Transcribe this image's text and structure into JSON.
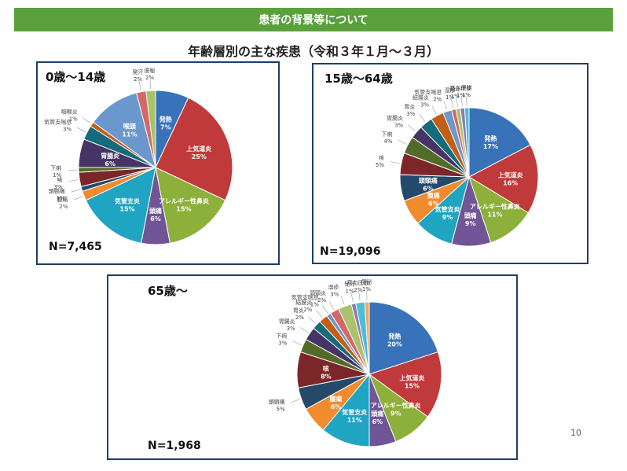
{
  "header": {
    "title": "患者の背景等について"
  },
  "page_title": "年齢層別の主な疾患（令和３年１月～３月）",
  "page_number": "10",
  "colors": {
    "header_bg": "#5aa13b",
    "panel_border": "#1f3f66"
  },
  "chart_data": [
    {
      "type": "pie",
      "title": "0歳～14歳",
      "n_label": "N=7,465",
      "slices": [
        {
          "name": "発熱",
          "label": "発熱",
          "pct_label": "7%",
          "value": 7,
          "color": "#3872b8"
        },
        {
          "name": "上気道炎",
          "label": "上気道炎",
          "pct_label": "25%",
          "value": 25,
          "color": "#c0393b"
        },
        {
          "name": "アレルギー性鼻炎",
          "label": "アレルギー性鼻炎",
          "pct_label": "15%",
          "value": 15,
          "color": "#8db03a"
        },
        {
          "name": "頭痛",
          "label": "頭痛",
          "pct_label": "6%",
          "value": 6,
          "color": "#705597"
        },
        {
          "name": "気管支炎",
          "label": "気管支炎",
          "pct_label": "15%",
          "value": 15,
          "color": "#1fa4c1"
        },
        {
          "name": "腹痛",
          "label": "腹痛",
          "pct_label": "2%",
          "value": 2,
          "color": "#f28a2e"
        },
        {
          "name": "頭頸痛",
          "label": "頭頸痛",
          "pct_label": "1%",
          "value": 1,
          "color": "#24496b"
        },
        {
          "name": "咳",
          "label": "咳",
          "pct_label": "3%",
          "value": 3,
          "color": "#7b2629"
        },
        {
          "name": "下痢",
          "label": "下痢",
          "pct_label": "1%",
          "value": 1,
          "color": "#536b2a"
        },
        {
          "name": "胃腸炎",
          "label": "胃腸炎",
          "pct_label": "6%",
          "value": 6,
          "color": "#463466"
        },
        {
          "name": "気管支喘息",
          "label": "気管支喘息",
          "pct_label": "3%",
          "value": 3,
          "color": "#146b7c"
        },
        {
          "name": "咽喉炎",
          "label": "咽喉炎",
          "pct_label": "1%",
          "value": 1,
          "color": "#c35e15"
        },
        {
          "name": "喉頭",
          "label": "喉頭",
          "pct_label": "11%",
          "value": 11,
          "color": "#6b98cc"
        },
        {
          "name": "発汗",
          "label": "発汗",
          "pct_label": "2%",
          "value": 2,
          "color": "#d46869"
        },
        {
          "name": "便秘",
          "label": "便秘",
          "pct_label": "2%",
          "value": 2,
          "color": "#a8c36a"
        }
      ]
    },
    {
      "type": "pie",
      "title": "15歳～64歳",
      "n_label": "N=19,096",
      "slices": [
        {
          "name": "発熱",
          "label": "発熱",
          "pct_label": "17%",
          "value": 17,
          "color": "#3872b8"
        },
        {
          "name": "上気道炎",
          "label": "上気道炎",
          "pct_label": "16%",
          "value": 16,
          "color": "#c0393b"
        },
        {
          "name": "アレルギー性鼻炎",
          "label": "アレルギー性鼻炎",
          "pct_label": "11%",
          "value": 11,
          "color": "#8db03a"
        },
        {
          "name": "頭痛",
          "label": "頭痛",
          "pct_label": "9%",
          "value": 9,
          "color": "#705597"
        },
        {
          "name": "気管支炎",
          "label": "気管支炎",
          "pct_label": "9%",
          "value": 9,
          "color": "#1fa4c1"
        },
        {
          "name": "腹痛",
          "label": "腹痛",
          "pct_label": "6%",
          "value": 6,
          "color": "#f28a2e"
        },
        {
          "name": "頭頸痛",
          "label": "頭頸痛",
          "pct_label": "6%",
          "value": 6,
          "color": "#24496b"
        },
        {
          "name": "咳",
          "label": "咳",
          "pct_label": "5%",
          "value": 5,
          "color": "#7b2629"
        },
        {
          "name": "下痢",
          "label": "下痢",
          "pct_label": "4%",
          "value": 4,
          "color": "#536b2a"
        },
        {
          "name": "胃腸炎",
          "label": "胃腸炎",
          "pct_label": "3%",
          "value": 3,
          "color": "#463466"
        },
        {
          "name": "胃炎",
          "label": "胃炎",
          "pct_label": "3%",
          "value": 3,
          "color": "#146b7c"
        },
        {
          "name": "結膜炎",
          "label": "結膜炎",
          "pct_label": "3%",
          "value": 3,
          "color": "#c35e15"
        },
        {
          "name": "気管支喘息",
          "label": "気管支喘息",
          "pct_label": "2%",
          "value": 2,
          "color": "#6b98cc"
        },
        {
          "name": "湿疹",
          "label": "湿疹",
          "pct_label": "1%",
          "value": 1,
          "color": "#d46869"
        },
        {
          "name": "発汗",
          "label": "発汗",
          "pct_label": "1%",
          "value": 1,
          "color": "#a8c36a"
        },
        {
          "name": "高血圧症",
          "label": "高血圧症",
          "pct_label": "1%",
          "value": 1,
          "color": "#8f7bb3"
        },
        {
          "name": "便秘",
          "label": "便秘",
          "pct_label": "1%",
          "value": 1,
          "color": "#4cbdd6"
        }
      ]
    },
    {
      "type": "pie",
      "title": "65歳～",
      "n_label": "N=1,968",
      "slices": [
        {
          "name": "発熱",
          "label": "発熱",
          "pct_label": "20%",
          "value": 20,
          "color": "#3872b8"
        },
        {
          "name": "上気道炎",
          "label": "上気道炎",
          "pct_label": "15%",
          "value": 15,
          "color": "#c0393b"
        },
        {
          "name": "アレルギー性鼻炎",
          "label": "アレルギー性鼻炎",
          "pct_label": "9%",
          "value": 9,
          "color": "#8db03a"
        },
        {
          "name": "頭痛",
          "label": "頭痛",
          "pct_label": "6%",
          "value": 6,
          "color": "#705597"
        },
        {
          "name": "気管支炎",
          "label": "気管支炎",
          "pct_label": "11%",
          "value": 11,
          "color": "#1fa4c1"
        },
        {
          "name": "腹痛",
          "label": "腹痛",
          "pct_label": "6%",
          "value": 6,
          "color": "#f28a2e"
        },
        {
          "name": "頭頸痛",
          "label": "頭頸痛",
          "pct_label": "5%",
          "value": 5,
          "color": "#24496b"
        },
        {
          "name": "咳",
          "label": "咳",
          "pct_label": "8%",
          "value": 8,
          "color": "#7b2629"
        },
        {
          "name": "下痢",
          "label": "下痢",
          "pct_label": "3%",
          "value": 3,
          "color": "#536b2a"
        },
        {
          "name": "胃腸炎",
          "label": "胃腸炎",
          "pct_label": "3%",
          "value": 3,
          "color": "#463466"
        },
        {
          "name": "胃炎",
          "label": "胃炎",
          "pct_label": "2%",
          "value": 2,
          "color": "#146b7c"
        },
        {
          "name": "結膜炎",
          "label": "結膜炎",
          "pct_label": "2%",
          "value": 2,
          "color": "#c35e15"
        },
        {
          "name": "気管支喘息",
          "label": "気管支喘息",
          "pct_label": "1%",
          "value": 1,
          "color": "#6b98cc"
        },
        {
          "name": "頭頸炎",
          "label": "頭頸炎",
          "pct_label": "2%",
          "value": 2,
          "color": "#d46869"
        },
        {
          "name": "湿疹",
          "label": "湿疹",
          "pct_label": "3%",
          "value": 3,
          "color": "#a8c36a"
        },
        {
          "name": "発汗",
          "label": "発汗",
          "pct_label": "1%",
          "value": 1,
          "color": "#8f7bb3"
        },
        {
          "name": "高血圧症",
          "label": "高血圧症",
          "pct_label": "2%",
          "value": 2,
          "color": "#4cbdd6"
        },
        {
          "name": "便秘",
          "label": "便秘",
          "pct_label": "1%",
          "value": 1,
          "color": "#f5a55c"
        }
      ]
    }
  ]
}
